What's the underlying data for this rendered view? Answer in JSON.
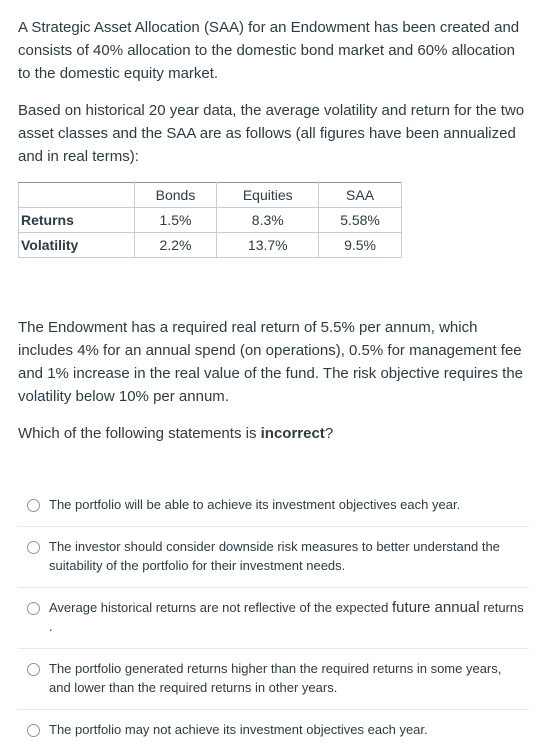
{
  "intro_paragraph": "A Strategic Asset Allocation (SAA) for an Endowment has been created and consists of 40% allocation to the domestic bond market and 60% allocation to the domestic equity market.",
  "historical_paragraph": "Based on historical 20 year data, the average volatility and return for the two asset classes and the SAA are as follows (all figures have been annualized and in real terms):",
  "table": {
    "headers": [
      "",
      "Bonds",
      "Equities",
      "SAA"
    ],
    "rows": [
      {
        "label": "Returns",
        "bonds": "1.5%",
        "equities": "8.3%",
        "saa": "5.58%"
      },
      {
        "label": "Volatility",
        "bonds": "2.2%",
        "equities": "13.7%",
        "saa": "9.5%"
      }
    ]
  },
  "requirement_paragraph": "The Endowment has a required real return of 5.5% per annum, which includes 4% for an annual spend (on operations), 0.5% for management fee and 1% increase in the real value of the fund. The risk objective requires the volatility below 10% per annum.",
  "question": {
    "prefix": "Which of the following statements is ",
    "emphasis": "incorrect",
    "suffix": "?"
  },
  "options": [
    {
      "text": "The portfolio will be able to achieve its investment objectives each year."
    },
    {
      "text": "The investor should consider downside risk measures to better understand the suitability of the portfolio for their investment needs."
    },
    {
      "text_a": "Average historical returns are not reflective of the expected ",
      "text_b": "future annual",
      "text_c": " returns ."
    },
    {
      "text": "The portfolio generated returns higher than the required returns in some years, and lower than the required returns in other years."
    },
    {
      "text": "The portfolio may not achieve its investment objectives each year."
    }
  ]
}
